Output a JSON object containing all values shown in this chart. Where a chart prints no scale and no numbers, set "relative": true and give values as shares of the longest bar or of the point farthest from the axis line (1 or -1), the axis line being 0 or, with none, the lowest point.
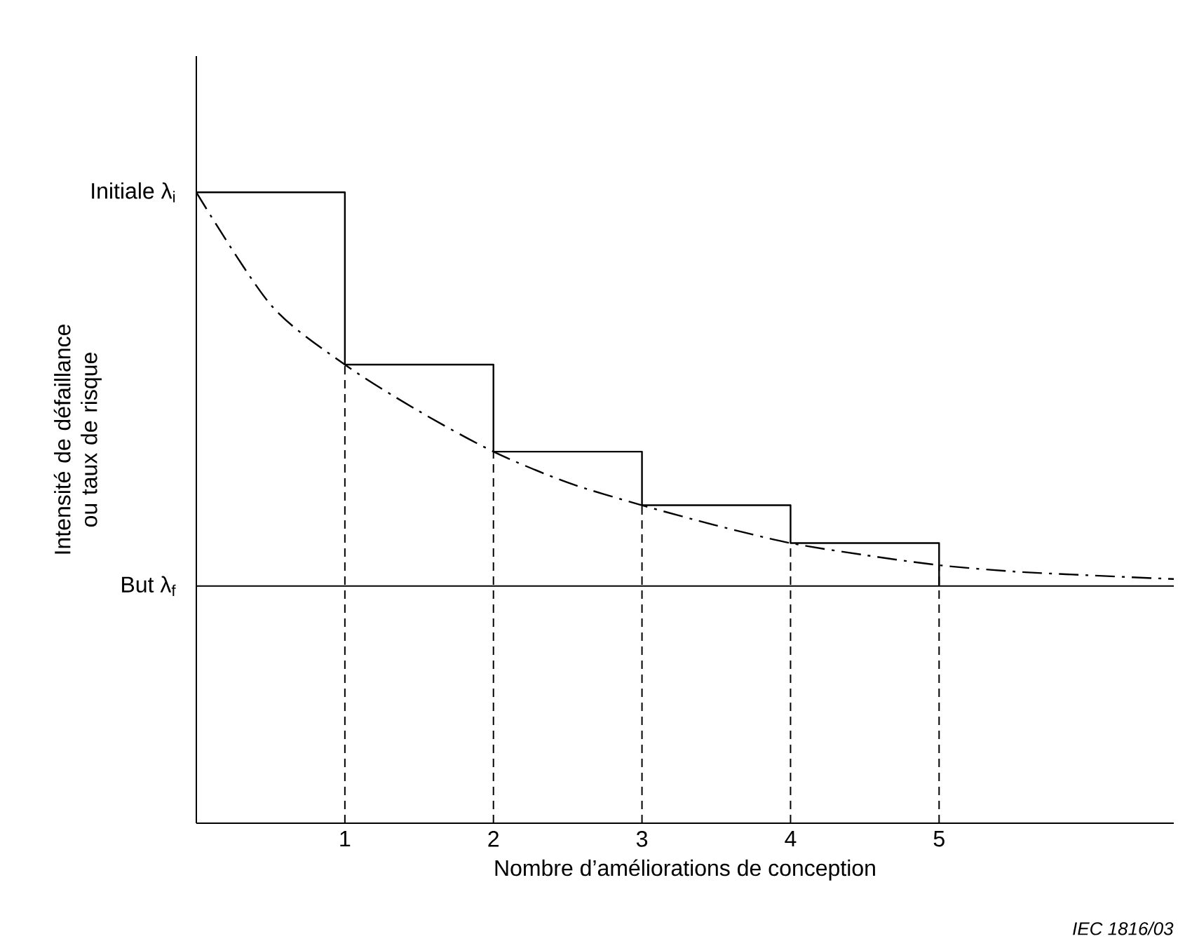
{
  "chart_data": {
    "type": "step",
    "relative": true,
    "xlabel": "Nombre d’améliorations de conception",
    "ylabel": "Intensité de défaillance ou taux de risque",
    "xlim": [
      0,
      6.58
    ],
    "xticks": [
      1,
      2,
      3,
      4,
      5
    ],
    "tick_labels": "x",
    "series": [
      {
        "color": "#000000",
        "line_style": "solid",
        "x": [
          0,
          1,
          2,
          3,
          4,
          5
        ],
        "values": [
          1,
          0.727,
          0.589,
          0.504,
          0.444,
          0.376
        ]
      },
      {
        "type": "line",
        "color": "#000000",
        "line_style": "dashdot",
        "x": [
          0,
          0.5,
          1,
          1.5,
          2,
          2.5,
          3,
          3.5,
          4,
          4.5,
          5,
          5.5,
          6,
          6.58
        ],
        "values": [
          1,
          0.822,
          0.727,
          0.653,
          0.589,
          0.54,
          0.504,
          0.472,
          0.444,
          0.425,
          0.409,
          0.399,
          0.393,
          0.387
        ]
      }
    ],
    "ref_lines": [
      {
        "axis": "y",
        "value": 0.376,
        "label": "But λ$_{f}$",
        "color": "#000000",
        "line_style": "solid"
      },
      {
        "axis": "x",
        "value": 1,
        "color": "#000000",
        "line_style": "dashed"
      },
      {
        "axis": "x",
        "value": 2,
        "color": "#000000",
        "line_style": "dashed"
      },
      {
        "axis": "x",
        "value": 3,
        "color": "#000000",
        "line_style": "dashed"
      },
      {
        "axis": "x",
        "value": 4,
        "color": "#000000",
        "line_style": "dashed"
      },
      {
        "axis": "x",
        "value": 5,
        "color": "#000000",
        "line_style": "dashed"
      }
    ],
    "annotations": [
      {
        "text": "Initiale λ$_{i}$",
        "x": 0,
        "y": 1
      },
      "*IEC   1816/03*"
    ],
    "grid": false,
    "marker": "none"
  }
}
